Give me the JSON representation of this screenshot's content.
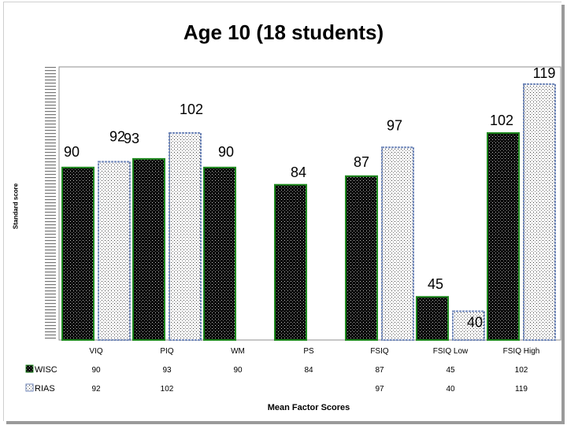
{
  "chart_data": {
    "type": "bar",
    "title": "Age 10 (18 students)",
    "xlabel": "Mean Factor Scores",
    "ylabel": "Standard score",
    "categories": [
      "VIQ",
      "PIQ",
      "WM",
      "PS",
      "FSIQ",
      "FSIQ Low",
      "FSIQ High"
    ],
    "series": [
      {
        "name": "WISC",
        "values": [
          90,
          93,
          90,
          84,
          87,
          45,
          102
        ],
        "table_values": [
          "90",
          "93",
          "90",
          "84",
          "87",
          "45",
          "102"
        ],
        "fill": "#000000",
        "border": "#1f8a1f"
      },
      {
        "name": "RIAS",
        "values": [
          92,
          102,
          null,
          null,
          97,
          40,
          119
        ],
        "table_values": [
          "92",
          "102",
          "",
          "",
          "97",
          "40",
          "119"
        ],
        "fill": "#ffffff",
        "border": "#6f86b8"
      }
    ],
    "data_labels": {
      "WISC": [
        "90",
        "93",
        "90",
        "84",
        "87",
        "45",
        "102"
      ],
      "RIAS": [
        "92",
        "102",
        "",
        "",
        "97",
        "40",
        "119"
      ]
    },
    "ylim": [
      30,
      125
    ],
    "grid": false,
    "legend": "data-table-left"
  }
}
